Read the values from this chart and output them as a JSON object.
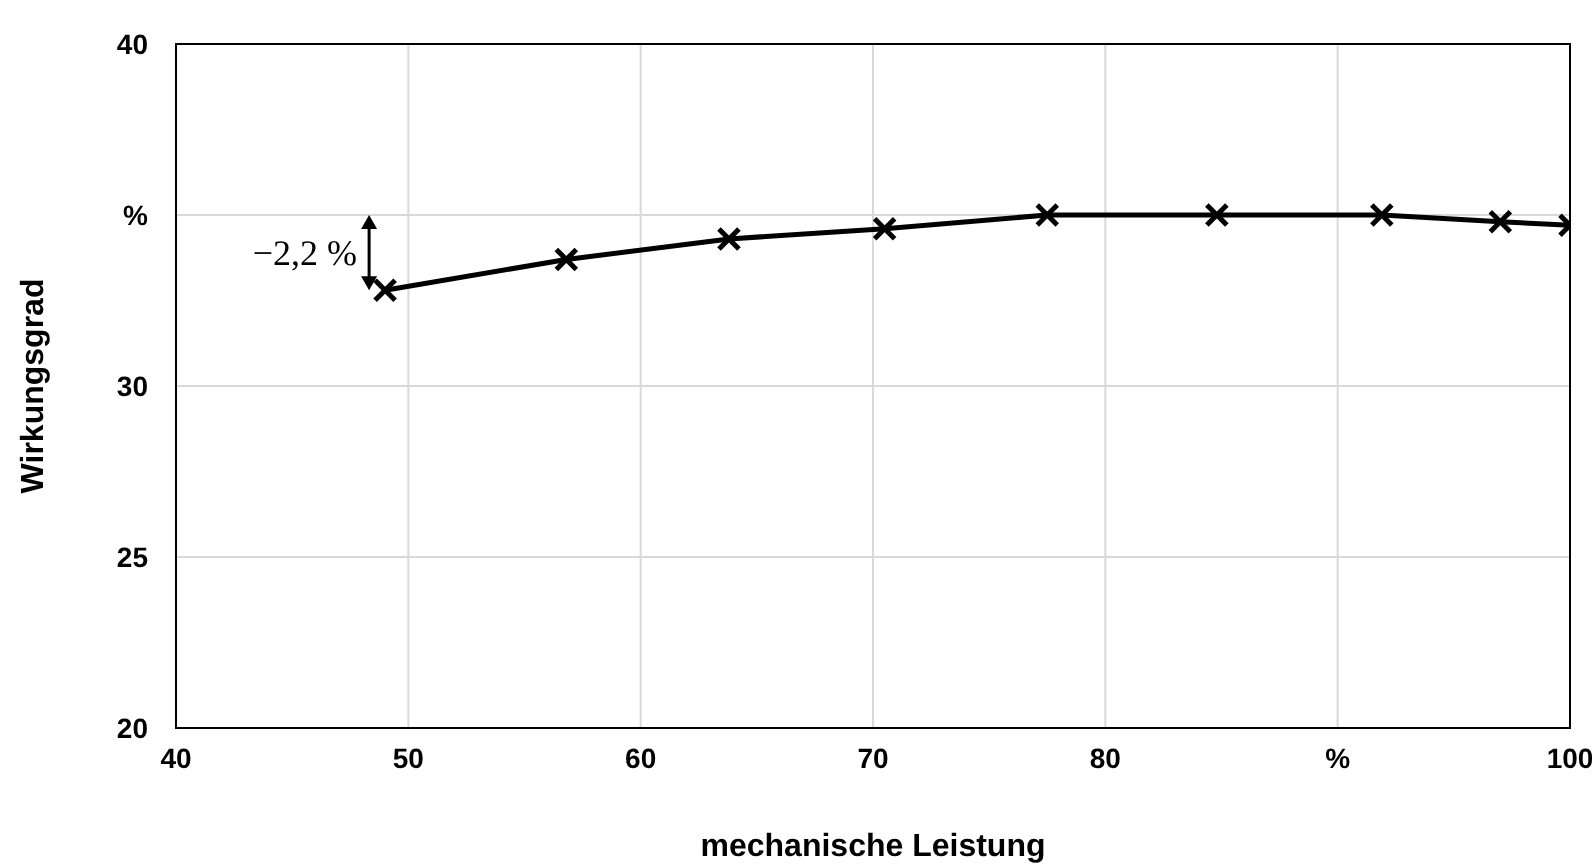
{
  "chart_data": {
    "type": "line",
    "xlabel": "mechanische Leistung",
    "ylabel": "Wirkungsgrad",
    "x": [
      49.0,
      56.8,
      63.8,
      70.5,
      77.5,
      84.8,
      91.9,
      97.0,
      100.0
    ],
    "series": [
      {
        "color": "#000000",
        "values": [
          32.8,
          33.7,
          34.3,
          34.6,
          35.0,
          35.0,
          35.0,
          34.8,
          34.7
        ]
      }
    ],
    "xlim": [
      40,
      100
    ],
    "xticks": [
      40,
      50,
      60,
      70,
      80,
      {
        "value": 90,
        "label": "%"
      },
      100
    ],
    "ylim": [
      20,
      40
    ],
    "yticks": [
      20,
      25,
      30,
      {
        "value": 35,
        "label": "%"
      },
      40
    ],
    "grid": true,
    "marker": "cross",
    "line_style": "solid",
    "annotations": [
      "−2,2 %"
    ]
  }
}
